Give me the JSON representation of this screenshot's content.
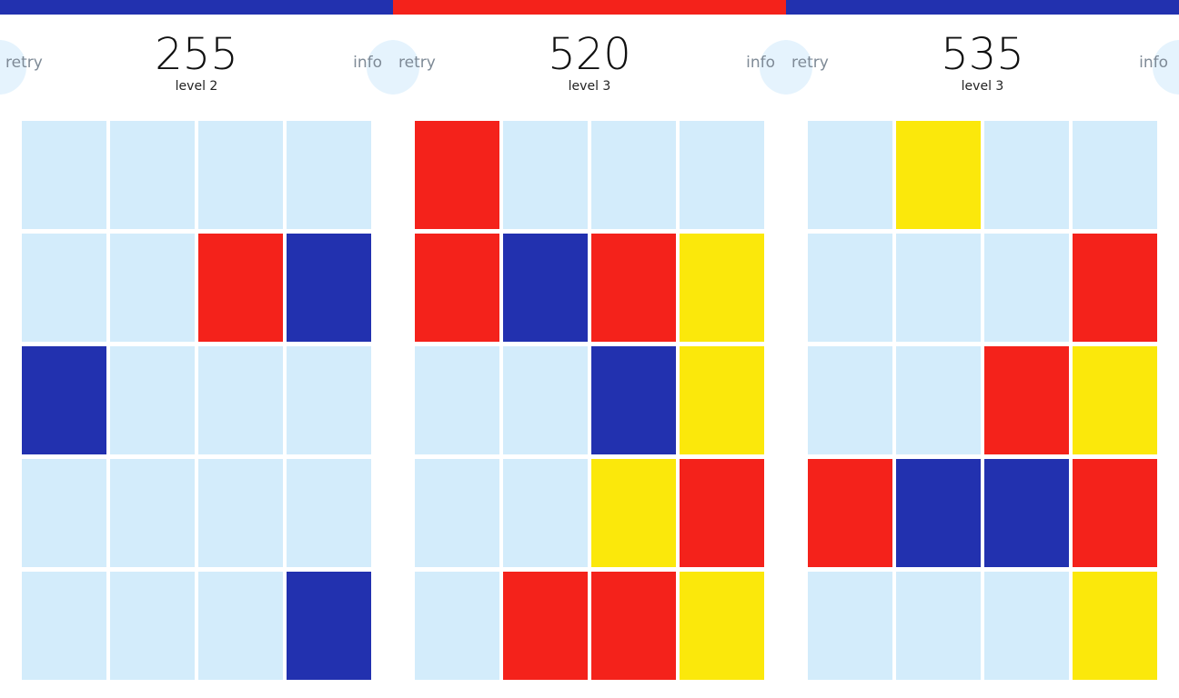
{
  "colors": {
    "empty": "#d3ecfb",
    "red": "#f4221b",
    "blue": "#2231af",
    "yellow": "#fbe80b"
  },
  "boards": [
    {
      "bar_color": "#2231af",
      "retry_label": "retry",
      "info_label": "info",
      "score": "255",
      "level": "level 2",
      "cells": [
        [
          "empty",
          "empty",
          "empty",
          "empty"
        ],
        [
          "empty",
          "empty",
          "red",
          "blue"
        ],
        [
          "blue",
          "empty",
          "empty",
          "empty"
        ],
        [
          "empty",
          "empty",
          "empty",
          "empty"
        ],
        [
          "empty",
          "empty",
          "empty",
          "blue"
        ]
      ]
    },
    {
      "bar_color": "#f4221b",
      "retry_label": "retry",
      "info_label": "info",
      "score": "520",
      "level": "level 3",
      "cells": [
        [
          "red",
          "empty",
          "empty",
          "empty"
        ],
        [
          "red",
          "blue",
          "red",
          "yellow"
        ],
        [
          "empty",
          "empty",
          "blue",
          "yellow"
        ],
        [
          "empty",
          "empty",
          "yellow",
          "red"
        ],
        [
          "empty",
          "red",
          "red",
          "yellow"
        ]
      ]
    },
    {
      "bar_color": "#2231af",
      "retry_label": "retry",
      "info_label": "info",
      "score": "535",
      "level": "level 3",
      "cells": [
        [
          "empty",
          "yellow",
          "empty",
          "empty"
        ],
        [
          "empty",
          "empty",
          "empty",
          "red"
        ],
        [
          "empty",
          "empty",
          "red",
          "yellow"
        ],
        [
          "red",
          "blue",
          "blue",
          "red"
        ],
        [
          "empty",
          "empty",
          "empty",
          "yellow"
        ]
      ]
    }
  ]
}
